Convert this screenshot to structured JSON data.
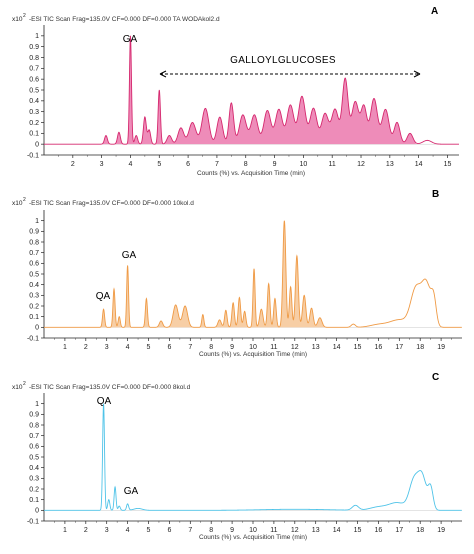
{
  "panels": [
    {
      "id": "A",
      "letter": "A",
      "header": "-ESI TIC Scan Frag=135.0V CF=0.000 DF=0.000 TA WODAkol2.d",
      "multiplier": "x10",
      "exponent": "2",
      "xlabel": "Counts (%) vs. Acquisition Time (min)",
      "xlim": [
        1,
        15.4
      ],
      "ylim": [
        -0.1,
        1.1
      ],
      "xticks": [
        2,
        3,
        4,
        5,
        6,
        7,
        8,
        9,
        10,
        11,
        12,
        13,
        14,
        15
      ],
      "yticks": [
        -0.1,
        0,
        0.1,
        0.2,
        0.3,
        0.4,
        0.5,
        0.6,
        0.7,
        0.8,
        0.9,
        1
      ],
      "ytick_labels": [
        "-0.1",
        "0",
        "0.1",
        "0.2",
        "0.3",
        "0.4",
        "0.5",
        "0.6",
        "0.7",
        "0.8",
        "0.9",
        "1"
      ],
      "annotations": [
        {
          "text": "GA",
          "x": 4.0,
          "y": 1.06
        },
        {
          "text": "GALLOYLGLUCOSES",
          "x": 9.4,
          "y": 0.82
        }
      ],
      "arrow": {
        "from": 5.0,
        "to": 14.3,
        "y": 0.72
      },
      "colors": {
        "line": "#d5286e",
        "fill": "#ea6fa7"
      }
    },
    {
      "id": "B",
      "letter": "B",
      "header": "-ESI TIC Scan Frag=135.0V CF=0.000 DF=0.000 10kol.d",
      "multiplier": "x10",
      "exponent": "2",
      "xlabel": "Counts (%) vs. Acquisition Time (min)",
      "xlim": [
        0,
        20
      ],
      "ylim": [
        -0.1,
        1.1
      ],
      "xticks": [
        1,
        2,
        3,
        4,
        5,
        6,
        7,
        8,
        9,
        10,
        11,
        12,
        13,
        14,
        15,
        16,
        17,
        18,
        19
      ],
      "yticks": [
        -0.1,
        0,
        0.1,
        0.2,
        0.3,
        0.4,
        0.5,
        0.6,
        0.7,
        0.8,
        0.9,
        1
      ],
      "ytick_labels": [
        "-0.1",
        "0",
        "0.1",
        "0.2",
        "0.3",
        "0.4",
        "0.5",
        "0.6",
        "0.7",
        "0.8",
        "0.9",
        "1"
      ],
      "annotations": [
        {
          "text": "QA",
          "x": 2.6,
          "y": 0.27
        },
        {
          "text": "GA",
          "x": 4.0,
          "y": 0.68
        }
      ],
      "colors": {
        "line": "#ef9a45",
        "fill": "#f5c28e"
      }
    },
    {
      "id": "C",
      "letter": "C",
      "header": "-ESI TIC Scan Frag=135.0V CF=0.000 DF=0.000 8kol.d",
      "multiplier": "x10",
      "exponent": "2",
      "xlabel": "Counts (%) vs. Acquisition Time (min)",
      "xlim": [
        0,
        20
      ],
      "ylim": [
        -0.1,
        1.1
      ],
      "xticks": [
        1,
        2,
        3,
        4,
        5,
        6,
        7,
        8,
        9,
        10,
        11,
        12,
        13,
        14,
        15,
        16,
        17,
        18,
        19
      ],
      "yticks": [
        -0.1,
        0,
        0.1,
        0.2,
        0.3,
        0.4,
        0.5,
        0.6,
        0.7,
        0.8,
        0.9,
        1
      ],
      "ytick_labels": [
        "-0.1",
        "0",
        "0.1",
        "0.2",
        "0.3",
        "0.4",
        "0.5",
        "0.6",
        "0.7",
        "0.8",
        "0.9",
        "1"
      ],
      "annotations": [
        {
          "text": "QA",
          "x": 2.9,
          "y": 1.02
        },
        {
          "text": "GA",
          "x": 4.0,
          "y": 0.13
        }
      ],
      "colors": {
        "line": "#4ec3e8",
        "fill": "none"
      }
    }
  ],
  "chart_data": [
    {
      "type": "area",
      "panel": "A",
      "title": "-ESI TIC Scan Frag=135.0V CF=0.000 DF=0.000 TA WODAkol2.d",
      "xlabel": "Counts (%) vs. Acquisition Time (min)",
      "ylabel": "x10^2",
      "xlim": [
        1,
        15.4
      ],
      "ylim": [
        -0.1,
        1.1
      ],
      "peaks": [
        {
          "t": 3.15,
          "h": 0.08,
          "w": 0.05
        },
        {
          "t": 3.6,
          "h": 0.11,
          "w": 0.05
        },
        {
          "t": 4.0,
          "h": 1.0,
          "w": 0.035
        },
        {
          "t": 4.2,
          "h": 0.08,
          "w": 0.05
        },
        {
          "t": 4.5,
          "h": 0.25,
          "w": 0.05
        },
        {
          "t": 4.65,
          "h": 0.13,
          "w": 0.05
        },
        {
          "t": 5.0,
          "h": 0.5,
          "w": 0.04
        },
        {
          "t": 5.35,
          "h": 0.08,
          "w": 0.08
        },
        {
          "t": 5.75,
          "h": 0.15,
          "w": 0.1
        },
        {
          "t": 6.15,
          "h": 0.2,
          "w": 0.12
        },
        {
          "t": 6.6,
          "h": 0.33,
          "w": 0.12
        },
        {
          "t": 7.1,
          "h": 0.25,
          "w": 0.1
        },
        {
          "t": 7.5,
          "h": 0.38,
          "w": 0.08
        },
        {
          "t": 7.9,
          "h": 0.27,
          "w": 0.12
        },
        {
          "t": 8.3,
          "h": 0.27,
          "w": 0.12
        },
        {
          "t": 8.75,
          "h": 0.31,
          "w": 0.12
        },
        {
          "t": 9.15,
          "h": 0.32,
          "w": 0.12
        },
        {
          "t": 9.55,
          "h": 0.36,
          "w": 0.12
        },
        {
          "t": 9.95,
          "h": 0.44,
          "w": 0.12
        },
        {
          "t": 10.35,
          "h": 0.33,
          "w": 0.12
        },
        {
          "t": 10.75,
          "h": 0.28,
          "w": 0.12
        },
        {
          "t": 11.1,
          "h": 0.32,
          "w": 0.12
        },
        {
          "t": 11.45,
          "h": 0.6,
          "w": 0.1
        },
        {
          "t": 11.8,
          "h": 0.39,
          "w": 0.12
        },
        {
          "t": 12.1,
          "h": 0.34,
          "w": 0.1
        },
        {
          "t": 12.45,
          "h": 0.42,
          "w": 0.12
        },
        {
          "t": 12.85,
          "h": 0.32,
          "w": 0.12
        },
        {
          "t": 13.25,
          "h": 0.2,
          "w": 0.1
        },
        {
          "t": 13.7,
          "h": 0.1,
          "w": 0.1
        },
        {
          "t": 14.3,
          "h": 0.035,
          "w": 0.15
        }
      ]
    },
    {
      "type": "area",
      "panel": "B",
      "title": "-ESI TIC Scan Frag=135.0V CF=0.000 DF=0.000 10kol.d",
      "xlabel": "Counts (%) vs. Acquisition Time (min)",
      "ylabel": "x10^2",
      "xlim": [
        0,
        20
      ],
      "ylim": [
        -0.1,
        1.1
      ],
      "peaks": [
        {
          "t": 2.85,
          "h": 0.17,
          "w": 0.05
        },
        {
          "t": 3.35,
          "h": 0.36,
          "w": 0.05
        },
        {
          "t": 3.6,
          "h": 0.1,
          "w": 0.05
        },
        {
          "t": 4.0,
          "h": 0.58,
          "w": 0.045
        },
        {
          "t": 4.9,
          "h": 0.27,
          "w": 0.05
        },
        {
          "t": 5.6,
          "h": 0.06,
          "w": 0.08
        },
        {
          "t": 6.3,
          "h": 0.21,
          "w": 0.12
        },
        {
          "t": 6.75,
          "h": 0.2,
          "w": 0.12
        },
        {
          "t": 7.6,
          "h": 0.12,
          "w": 0.05
        },
        {
          "t": 8.4,
          "h": 0.07,
          "w": 0.08
        },
        {
          "t": 8.7,
          "h": 0.16,
          "w": 0.06
        },
        {
          "t": 9.05,
          "h": 0.23,
          "w": 0.06
        },
        {
          "t": 9.35,
          "h": 0.28,
          "w": 0.06
        },
        {
          "t": 9.6,
          "h": 0.15,
          "w": 0.06
        },
        {
          "t": 10.05,
          "h": 0.55,
          "w": 0.05
        },
        {
          "t": 10.4,
          "h": 0.17,
          "w": 0.08
        },
        {
          "t": 10.75,
          "h": 0.41,
          "w": 0.06
        },
        {
          "t": 11.05,
          "h": 0.27,
          "w": 0.06
        },
        {
          "t": 11.5,
          "h": 1.0,
          "w": 0.07
        },
        {
          "t": 11.8,
          "h": 0.38,
          "w": 0.06
        },
        {
          "t": 12.1,
          "h": 0.67,
          "w": 0.07
        },
        {
          "t": 12.45,
          "h": 0.3,
          "w": 0.08
        },
        {
          "t": 12.8,
          "h": 0.18,
          "w": 0.08
        },
        {
          "t": 13.2,
          "h": 0.09,
          "w": 0.1
        },
        {
          "t": 14.8,
          "h": 0.03,
          "w": 0.1
        },
        {
          "t": 16.0,
          "h": 0.025,
          "w": 0.4
        },
        {
          "t": 17.0,
          "h": 0.07,
          "w": 0.45
        },
        {
          "t": 17.8,
          "h": 0.35,
          "w": 0.25
        },
        {
          "t": 18.3,
          "h": 0.39,
          "w": 0.22
        },
        {
          "t": 18.65,
          "h": 0.22,
          "w": 0.12
        }
      ]
    },
    {
      "type": "line",
      "panel": "C",
      "title": "-ESI TIC Scan Frag=135.0V CF=0.000 DF=0.000 8kol.d",
      "xlabel": "Counts (%) vs. Acquisition Time (min)",
      "ylabel": "x10^2",
      "xlim": [
        0,
        20
      ],
      "ylim": [
        -0.1,
        1.1
      ],
      "peaks": [
        {
          "t": 2.85,
          "h": 1.0,
          "w": 0.045
        },
        {
          "t": 3.1,
          "h": 0.1,
          "w": 0.05
        },
        {
          "t": 3.4,
          "h": 0.22,
          "w": 0.045
        },
        {
          "t": 3.6,
          "h": 0.04,
          "w": 0.05
        },
        {
          "t": 4.0,
          "h": 0.06,
          "w": 0.05
        },
        {
          "t": 4.5,
          "h": 0.018,
          "w": 0.2
        },
        {
          "t": 12.0,
          "h": 0.01,
          "w": 1.5
        },
        {
          "t": 14.9,
          "h": 0.045,
          "w": 0.15
        },
        {
          "t": 16.0,
          "h": 0.03,
          "w": 0.4
        },
        {
          "t": 16.9,
          "h": 0.07,
          "w": 0.4
        },
        {
          "t": 17.7,
          "h": 0.27,
          "w": 0.22
        },
        {
          "t": 18.1,
          "h": 0.3,
          "w": 0.2
        },
        {
          "t": 18.5,
          "h": 0.2,
          "w": 0.12
        }
      ]
    }
  ]
}
